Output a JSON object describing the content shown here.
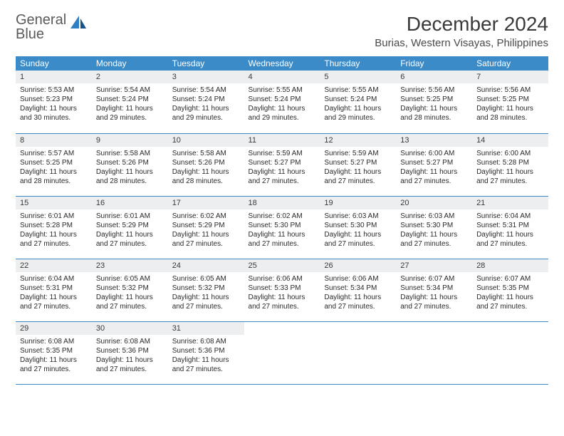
{
  "brand": {
    "part1": "General",
    "part2": "Blue"
  },
  "title": "December 2024",
  "location": "Burias, Western Visayas, Philippines",
  "colors": {
    "header_bg": "#3b8bc9",
    "header_text": "#ffffff",
    "daynum_bg": "#eceeef",
    "border": "#3b8bc9",
    "logo_gray": "#5a5a5a",
    "logo_blue": "#2f80c2",
    "body_text": "#2a2a2a"
  },
  "typography": {
    "title_fontsize": 28,
    "location_fontsize": 15,
    "dayheader_fontsize": 12,
    "cell_fontsize": 10
  },
  "day_headers": [
    "Sunday",
    "Monday",
    "Tuesday",
    "Wednesday",
    "Thursday",
    "Friday",
    "Saturday"
  ],
  "weeks": [
    [
      {
        "n": "1",
        "sr": "Sunrise: 5:53 AM",
        "ss": "Sunset: 5:23 PM",
        "dl1": "Daylight: 11 hours",
        "dl2": "and 30 minutes."
      },
      {
        "n": "2",
        "sr": "Sunrise: 5:54 AM",
        "ss": "Sunset: 5:24 PM",
        "dl1": "Daylight: 11 hours",
        "dl2": "and 29 minutes."
      },
      {
        "n": "3",
        "sr": "Sunrise: 5:54 AM",
        "ss": "Sunset: 5:24 PM",
        "dl1": "Daylight: 11 hours",
        "dl2": "and 29 minutes."
      },
      {
        "n": "4",
        "sr": "Sunrise: 5:55 AM",
        "ss": "Sunset: 5:24 PM",
        "dl1": "Daylight: 11 hours",
        "dl2": "and 29 minutes."
      },
      {
        "n": "5",
        "sr": "Sunrise: 5:55 AM",
        "ss": "Sunset: 5:24 PM",
        "dl1": "Daylight: 11 hours",
        "dl2": "and 29 minutes."
      },
      {
        "n": "6",
        "sr": "Sunrise: 5:56 AM",
        "ss": "Sunset: 5:25 PM",
        "dl1": "Daylight: 11 hours",
        "dl2": "and 28 minutes."
      },
      {
        "n": "7",
        "sr": "Sunrise: 5:56 AM",
        "ss": "Sunset: 5:25 PM",
        "dl1": "Daylight: 11 hours",
        "dl2": "and 28 minutes."
      }
    ],
    [
      {
        "n": "8",
        "sr": "Sunrise: 5:57 AM",
        "ss": "Sunset: 5:25 PM",
        "dl1": "Daylight: 11 hours",
        "dl2": "and 28 minutes."
      },
      {
        "n": "9",
        "sr": "Sunrise: 5:58 AM",
        "ss": "Sunset: 5:26 PM",
        "dl1": "Daylight: 11 hours",
        "dl2": "and 28 minutes."
      },
      {
        "n": "10",
        "sr": "Sunrise: 5:58 AM",
        "ss": "Sunset: 5:26 PM",
        "dl1": "Daylight: 11 hours",
        "dl2": "and 28 minutes."
      },
      {
        "n": "11",
        "sr": "Sunrise: 5:59 AM",
        "ss": "Sunset: 5:27 PM",
        "dl1": "Daylight: 11 hours",
        "dl2": "and 27 minutes."
      },
      {
        "n": "12",
        "sr": "Sunrise: 5:59 AM",
        "ss": "Sunset: 5:27 PM",
        "dl1": "Daylight: 11 hours",
        "dl2": "and 27 minutes."
      },
      {
        "n": "13",
        "sr": "Sunrise: 6:00 AM",
        "ss": "Sunset: 5:27 PM",
        "dl1": "Daylight: 11 hours",
        "dl2": "and 27 minutes."
      },
      {
        "n": "14",
        "sr": "Sunrise: 6:00 AM",
        "ss": "Sunset: 5:28 PM",
        "dl1": "Daylight: 11 hours",
        "dl2": "and 27 minutes."
      }
    ],
    [
      {
        "n": "15",
        "sr": "Sunrise: 6:01 AM",
        "ss": "Sunset: 5:28 PM",
        "dl1": "Daylight: 11 hours",
        "dl2": "and 27 minutes."
      },
      {
        "n": "16",
        "sr": "Sunrise: 6:01 AM",
        "ss": "Sunset: 5:29 PM",
        "dl1": "Daylight: 11 hours",
        "dl2": "and 27 minutes."
      },
      {
        "n": "17",
        "sr": "Sunrise: 6:02 AM",
        "ss": "Sunset: 5:29 PM",
        "dl1": "Daylight: 11 hours",
        "dl2": "and 27 minutes."
      },
      {
        "n": "18",
        "sr": "Sunrise: 6:02 AM",
        "ss": "Sunset: 5:30 PM",
        "dl1": "Daylight: 11 hours",
        "dl2": "and 27 minutes."
      },
      {
        "n": "19",
        "sr": "Sunrise: 6:03 AM",
        "ss": "Sunset: 5:30 PM",
        "dl1": "Daylight: 11 hours",
        "dl2": "and 27 minutes."
      },
      {
        "n": "20",
        "sr": "Sunrise: 6:03 AM",
        "ss": "Sunset: 5:30 PM",
        "dl1": "Daylight: 11 hours",
        "dl2": "and 27 minutes."
      },
      {
        "n": "21",
        "sr": "Sunrise: 6:04 AM",
        "ss": "Sunset: 5:31 PM",
        "dl1": "Daylight: 11 hours",
        "dl2": "and 27 minutes."
      }
    ],
    [
      {
        "n": "22",
        "sr": "Sunrise: 6:04 AM",
        "ss": "Sunset: 5:31 PM",
        "dl1": "Daylight: 11 hours",
        "dl2": "and 27 minutes."
      },
      {
        "n": "23",
        "sr": "Sunrise: 6:05 AM",
        "ss": "Sunset: 5:32 PM",
        "dl1": "Daylight: 11 hours",
        "dl2": "and 27 minutes."
      },
      {
        "n": "24",
        "sr": "Sunrise: 6:05 AM",
        "ss": "Sunset: 5:32 PM",
        "dl1": "Daylight: 11 hours",
        "dl2": "and 27 minutes."
      },
      {
        "n": "25",
        "sr": "Sunrise: 6:06 AM",
        "ss": "Sunset: 5:33 PM",
        "dl1": "Daylight: 11 hours",
        "dl2": "and 27 minutes."
      },
      {
        "n": "26",
        "sr": "Sunrise: 6:06 AM",
        "ss": "Sunset: 5:34 PM",
        "dl1": "Daylight: 11 hours",
        "dl2": "and 27 minutes."
      },
      {
        "n": "27",
        "sr": "Sunrise: 6:07 AM",
        "ss": "Sunset: 5:34 PM",
        "dl1": "Daylight: 11 hours",
        "dl2": "and 27 minutes."
      },
      {
        "n": "28",
        "sr": "Sunrise: 6:07 AM",
        "ss": "Sunset: 5:35 PM",
        "dl1": "Daylight: 11 hours",
        "dl2": "and 27 minutes."
      }
    ],
    [
      {
        "n": "29",
        "sr": "Sunrise: 6:08 AM",
        "ss": "Sunset: 5:35 PM",
        "dl1": "Daylight: 11 hours",
        "dl2": "and 27 minutes."
      },
      {
        "n": "30",
        "sr": "Sunrise: 6:08 AM",
        "ss": "Sunset: 5:36 PM",
        "dl1": "Daylight: 11 hours",
        "dl2": "and 27 minutes."
      },
      {
        "n": "31",
        "sr": "Sunrise: 6:08 AM",
        "ss": "Sunset: 5:36 PM",
        "dl1": "Daylight: 11 hours",
        "dl2": "and 27 minutes."
      },
      null,
      null,
      null,
      null
    ]
  ]
}
